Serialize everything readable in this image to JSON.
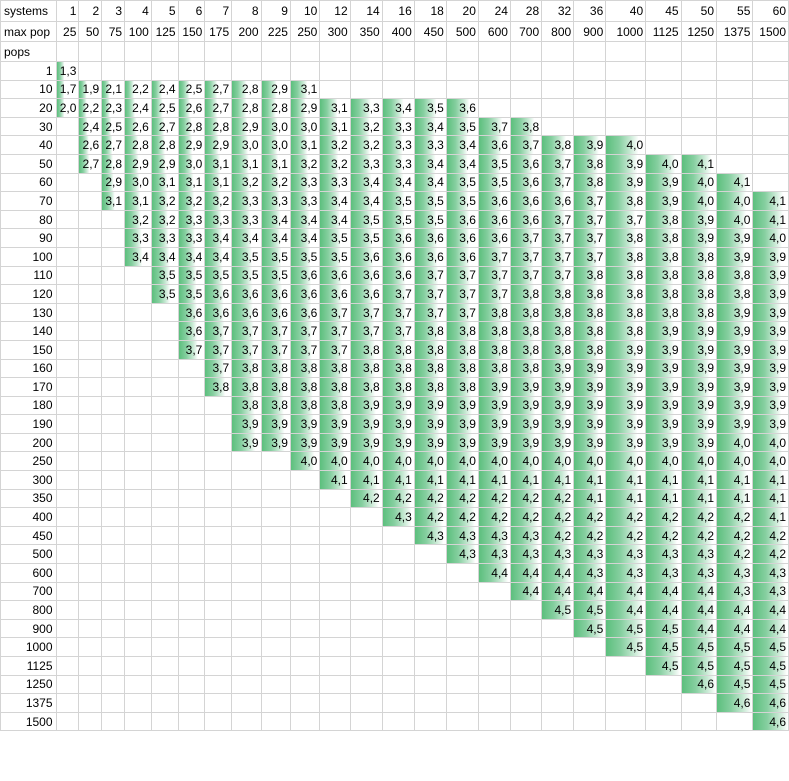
{
  "labels": {
    "systems": "systems",
    "max_pop": "max pop",
    "pops": "pops"
  },
  "columns": [
    {
      "systems": "1",
      "max_pop": "25"
    },
    {
      "systems": "2",
      "max_pop": "50"
    },
    {
      "systems": "3",
      "max_pop": "75"
    },
    {
      "systems": "4",
      "max_pop": "100"
    },
    {
      "systems": "5",
      "max_pop": "125"
    },
    {
      "systems": "6",
      "max_pop": "150"
    },
    {
      "systems": "7",
      "max_pop": "175"
    },
    {
      "systems": "8",
      "max_pop": "200"
    },
    {
      "systems": "9",
      "max_pop": "225"
    },
    {
      "systems": "10",
      "max_pop": "250"
    },
    {
      "systems": "12",
      "max_pop": "300"
    },
    {
      "systems": "14",
      "max_pop": "350"
    },
    {
      "systems": "16",
      "max_pop": "400"
    },
    {
      "systems": "18",
      "max_pop": "450"
    },
    {
      "systems": "20",
      "max_pop": "500"
    },
    {
      "systems": "24",
      "max_pop": "600"
    },
    {
      "systems": "28",
      "max_pop": "700"
    },
    {
      "systems": "32",
      "max_pop": "800"
    },
    {
      "systems": "36",
      "max_pop": "900"
    },
    {
      "systems": "40",
      "max_pop": "1000"
    },
    {
      "systems": "45",
      "max_pop": "1125"
    },
    {
      "systems": "50",
      "max_pop": "1250"
    },
    {
      "systems": "55",
      "max_pop": "1375"
    },
    {
      "systems": "60",
      "max_pop": "1500"
    }
  ],
  "rows": [
    {
      "pops": "1",
      "values": [
        "1,3",
        "",
        "",
        "",
        "",
        "",
        "",
        "",
        "",
        "",
        "",
        "",
        "",
        "",
        "",
        "",
        "",
        "",
        "",
        "",
        "",
        "",
        "",
        ""
      ]
    },
    {
      "pops": "10",
      "values": [
        "1,7",
        "1,9",
        "2,1",
        "2,2",
        "2,4",
        "2,5",
        "2,7",
        "2,8",
        "2,9",
        "3,1",
        "",
        "",
        "",
        "",
        "",
        "",
        "",
        "",
        "",
        "",
        "",
        "",
        "",
        ""
      ]
    },
    {
      "pops": "20",
      "values": [
        "2,0",
        "2,2",
        "2,3",
        "2,4",
        "2,5",
        "2,6",
        "2,7",
        "2,8",
        "2,8",
        "2,9",
        "3,1",
        "3,3",
        "3,4",
        "3,5",
        "3,6",
        "",
        "",
        "",
        "",
        "",
        "",
        "",
        "",
        ""
      ]
    },
    {
      "pops": "30",
      "values": [
        "",
        "2,4",
        "2,5",
        "2,6",
        "2,7",
        "2,8",
        "2,8",
        "2,9",
        "3,0",
        "3,0",
        "3,1",
        "3,2",
        "3,3",
        "3,4",
        "3,5",
        "3,7",
        "3,8",
        "",
        "",
        "",
        "",
        "",
        "",
        ""
      ]
    },
    {
      "pops": "40",
      "values": [
        "",
        "2,6",
        "2,7",
        "2,8",
        "2,8",
        "2,9",
        "2,9",
        "3,0",
        "3,0",
        "3,1",
        "3,2",
        "3,2",
        "3,3",
        "3,3",
        "3,4",
        "3,6",
        "3,7",
        "3,8",
        "3,9",
        "4,0",
        "",
        "",
        "",
        ""
      ]
    },
    {
      "pops": "50",
      "values": [
        "",
        "2,7",
        "2,8",
        "2,9",
        "2,9",
        "3,0",
        "3,1",
        "3,1",
        "3,1",
        "3,2",
        "3,2",
        "3,3",
        "3,3",
        "3,4",
        "3,4",
        "3,5",
        "3,6",
        "3,7",
        "3,8",
        "3,9",
        "4,0",
        "4,1",
        "",
        ""
      ]
    },
    {
      "pops": "60",
      "values": [
        "",
        "",
        "2,9",
        "3,0",
        "3,1",
        "3,1",
        "3,1",
        "3,2",
        "3,2",
        "3,3",
        "3,3",
        "3,4",
        "3,4",
        "3,4",
        "3,5",
        "3,5",
        "3,6",
        "3,7",
        "3,8",
        "3,9",
        "3,9",
        "4,0",
        "4,1",
        ""
      ]
    },
    {
      "pops": "70",
      "values": [
        "",
        "",
        "3,1",
        "3,1",
        "3,2",
        "3,2",
        "3,2",
        "3,3",
        "3,3",
        "3,3",
        "3,4",
        "3,4",
        "3,5",
        "3,5",
        "3,5",
        "3,6",
        "3,6",
        "3,6",
        "3,7",
        "3,8",
        "3,9",
        "4,0",
        "4,0",
        "4,1"
      ]
    },
    {
      "pops": "80",
      "values": [
        "",
        "",
        "",
        "3,2",
        "3,2",
        "3,3",
        "3,3",
        "3,3",
        "3,4",
        "3,4",
        "3,4",
        "3,5",
        "3,5",
        "3,5",
        "3,6",
        "3,6",
        "3,6",
        "3,7",
        "3,7",
        "3,7",
        "3,8",
        "3,9",
        "4,0",
        "4,1"
      ]
    },
    {
      "pops": "90",
      "values": [
        "",
        "",
        "",
        "3,3",
        "3,3",
        "3,3",
        "3,4",
        "3,4",
        "3,4",
        "3,4",
        "3,5",
        "3,5",
        "3,6",
        "3,6",
        "3,6",
        "3,6",
        "3,7",
        "3,7",
        "3,7",
        "3,8",
        "3,8",
        "3,9",
        "3,9",
        "4,0"
      ]
    },
    {
      "pops": "100",
      "values": [
        "",
        "",
        "",
        "3,4",
        "3,4",
        "3,4",
        "3,4",
        "3,5",
        "3,5",
        "3,5",
        "3,5",
        "3,6",
        "3,6",
        "3,6",
        "3,6",
        "3,7",
        "3,7",
        "3,7",
        "3,7",
        "3,8",
        "3,8",
        "3,8",
        "3,9",
        "3,9"
      ]
    },
    {
      "pops": "110",
      "values": [
        "",
        "",
        "",
        "",
        "3,5",
        "3,5",
        "3,5",
        "3,5",
        "3,5",
        "3,6",
        "3,6",
        "3,6",
        "3,6",
        "3,7",
        "3,7",
        "3,7",
        "3,7",
        "3,7",
        "3,8",
        "3,8",
        "3,8",
        "3,8",
        "3,8",
        "3,9"
      ]
    },
    {
      "pops": "120",
      "values": [
        "",
        "",
        "",
        "",
        "3,5",
        "3,5",
        "3,6",
        "3,6",
        "3,6",
        "3,6",
        "3,6",
        "3,6",
        "3,7",
        "3,7",
        "3,7",
        "3,7",
        "3,8",
        "3,8",
        "3,8",
        "3,8",
        "3,8",
        "3,8",
        "3,8",
        "3,9"
      ]
    },
    {
      "pops": "130",
      "values": [
        "",
        "",
        "",
        "",
        "",
        "3,6",
        "3,6",
        "3,6",
        "3,6",
        "3,6",
        "3,7",
        "3,7",
        "3,7",
        "3,7",
        "3,7",
        "3,8",
        "3,8",
        "3,8",
        "3,8",
        "3,8",
        "3,8",
        "3,8",
        "3,9",
        "3,9"
      ]
    },
    {
      "pops": "140",
      "values": [
        "",
        "",
        "",
        "",
        "",
        "3,6",
        "3,7",
        "3,7",
        "3,7",
        "3,7",
        "3,7",
        "3,7",
        "3,7",
        "3,8",
        "3,8",
        "3,8",
        "3,8",
        "3,8",
        "3,8",
        "3,8",
        "3,9",
        "3,9",
        "3,9",
        "3,9"
      ]
    },
    {
      "pops": "150",
      "values": [
        "",
        "",
        "",
        "",
        "",
        "3,7",
        "3,7",
        "3,7",
        "3,7",
        "3,7",
        "3,7",
        "3,8",
        "3,8",
        "3,8",
        "3,8",
        "3,8",
        "3,8",
        "3,8",
        "3,8",
        "3,9",
        "3,9",
        "3,9",
        "3,9",
        "3,9"
      ]
    },
    {
      "pops": "160",
      "values": [
        "",
        "",
        "",
        "",
        "",
        "",
        "3,7",
        "3,8",
        "3,8",
        "3,8",
        "3,8",
        "3,8",
        "3,8",
        "3,8",
        "3,8",
        "3,8",
        "3,8",
        "3,9",
        "3,9",
        "3,9",
        "3,9",
        "3,9",
        "3,9",
        "3,9"
      ]
    },
    {
      "pops": "170",
      "values": [
        "",
        "",
        "",
        "",
        "",
        "",
        "3,8",
        "3,8",
        "3,8",
        "3,8",
        "3,8",
        "3,8",
        "3,8",
        "3,8",
        "3,8",
        "3,9",
        "3,9",
        "3,9",
        "3,9",
        "3,9",
        "3,9",
        "3,9",
        "3,9",
        "3,9"
      ]
    },
    {
      "pops": "180",
      "values": [
        "",
        "",
        "",
        "",
        "",
        "",
        "",
        "3,8",
        "3,8",
        "3,8",
        "3,8",
        "3,9",
        "3,9",
        "3,9",
        "3,9",
        "3,9",
        "3,9",
        "3,9",
        "3,9",
        "3,9",
        "3,9",
        "3,9",
        "3,9",
        "3,9"
      ]
    },
    {
      "pops": "190",
      "values": [
        "",
        "",
        "",
        "",
        "",
        "",
        "",
        "3,9",
        "3,9",
        "3,9",
        "3,9",
        "3,9",
        "3,9",
        "3,9",
        "3,9",
        "3,9",
        "3,9",
        "3,9",
        "3,9",
        "3,9",
        "3,9",
        "3,9",
        "3,9",
        "3,9"
      ]
    },
    {
      "pops": "200",
      "values": [
        "",
        "",
        "",
        "",
        "",
        "",
        "",
        "3,9",
        "3,9",
        "3,9",
        "3,9",
        "3,9",
        "3,9",
        "3,9",
        "3,9",
        "3,9",
        "3,9",
        "3,9",
        "3,9",
        "3,9",
        "3,9",
        "3,9",
        "4,0",
        "4,0"
      ]
    },
    {
      "pops": "250",
      "values": [
        "",
        "",
        "",
        "",
        "",
        "",
        "",
        "",
        "",
        "4,0",
        "4,0",
        "4,0",
        "4,0",
        "4,0",
        "4,0",
        "4,0",
        "4,0",
        "4,0",
        "4,0",
        "4,0",
        "4,0",
        "4,0",
        "4,0",
        "4,0"
      ]
    },
    {
      "pops": "300",
      "values": [
        "",
        "",
        "",
        "",
        "",
        "",
        "",
        "",
        "",
        "",
        "4,1",
        "4,1",
        "4,1",
        "4,1",
        "4,1",
        "4,1",
        "4,1",
        "4,1",
        "4,1",
        "4,1",
        "4,1",
        "4,1",
        "4,1",
        "4,1"
      ]
    },
    {
      "pops": "350",
      "values": [
        "",
        "",
        "",
        "",
        "",
        "",
        "",
        "",
        "",
        "",
        "",
        "4,2",
        "4,2",
        "4,2",
        "4,2",
        "4,2",
        "4,2",
        "4,2",
        "4,1",
        "4,1",
        "4,1",
        "4,1",
        "4,1",
        "4,1"
      ]
    },
    {
      "pops": "400",
      "values": [
        "",
        "",
        "",
        "",
        "",
        "",
        "",
        "",
        "",
        "",
        "",
        "",
        "4,3",
        "4,2",
        "4,2",
        "4,2",
        "4,2",
        "4,2",
        "4,2",
        "4,2",
        "4,2",
        "4,2",
        "4,2",
        "4,1"
      ]
    },
    {
      "pops": "450",
      "values": [
        "",
        "",
        "",
        "",
        "",
        "",
        "",
        "",
        "",
        "",
        "",
        "",
        "",
        "4,3",
        "4,3",
        "4,3",
        "4,3",
        "4,2",
        "4,2",
        "4,2",
        "4,2",
        "4,2",
        "4,2",
        "4,2"
      ]
    },
    {
      "pops": "500",
      "values": [
        "",
        "",
        "",
        "",
        "",
        "",
        "",
        "",
        "",
        "",
        "",
        "",
        "",
        "",
        "4,3",
        "4,3",
        "4,3",
        "4,3",
        "4,3",
        "4,3",
        "4,3",
        "4,3",
        "4,2",
        "4,2"
      ]
    },
    {
      "pops": "600",
      "values": [
        "",
        "",
        "",
        "",
        "",
        "",
        "",
        "",
        "",
        "",
        "",
        "",
        "",
        "",
        "",
        "4,4",
        "4,4",
        "4,4",
        "4,3",
        "4,3",
        "4,3",
        "4,3",
        "4,3",
        "4,3"
      ]
    },
    {
      "pops": "700",
      "values": [
        "",
        "",
        "",
        "",
        "",
        "",
        "",
        "",
        "",
        "",
        "",
        "",
        "",
        "",
        "",
        "",
        "4,4",
        "4,4",
        "4,4",
        "4,4",
        "4,4",
        "4,4",
        "4,3",
        "4,3"
      ]
    },
    {
      "pops": "800",
      "values": [
        "",
        "",
        "",
        "",
        "",
        "",
        "",
        "",
        "",
        "",
        "",
        "",
        "",
        "",
        "",
        "",
        "",
        "4,5",
        "4,5",
        "4,4",
        "4,4",
        "4,4",
        "4,4",
        "4,4"
      ]
    },
    {
      "pops": "900",
      "values": [
        "",
        "",
        "",
        "",
        "",
        "",
        "",
        "",
        "",
        "",
        "",
        "",
        "",
        "",
        "",
        "",
        "",
        "",
        "4,5",
        "4,5",
        "4,5",
        "4,4",
        "4,4",
        "4,4"
      ]
    },
    {
      "pops": "1000",
      "values": [
        "",
        "",
        "",
        "",
        "",
        "",
        "",
        "",
        "",
        "",
        "",
        "",
        "",
        "",
        "",
        "",
        "",
        "",
        "",
        "4,5",
        "4,5",
        "4,5",
        "4,5",
        "4,5"
      ]
    },
    {
      "pops": "1125",
      "values": [
        "",
        "",
        "",
        "",
        "",
        "",
        "",
        "",
        "",
        "",
        "",
        "",
        "",
        "",
        "",
        "",
        "",
        "",
        "",
        "",
        "4,5",
        "4,5",
        "4,5",
        "4,5"
      ]
    },
    {
      "pops": "1250",
      "values": [
        "",
        "",
        "",
        "",
        "",
        "",
        "",
        "",
        "",
        "",
        "",
        "",
        "",
        "",
        "",
        "",
        "",
        "",
        "",
        "",
        "",
        "4,6",
        "4,5",
        "4,5"
      ]
    },
    {
      "pops": "1375",
      "values": [
        "",
        "",
        "",
        "",
        "",
        "",
        "",
        "",
        "",
        "",
        "",
        "",
        "",
        "",
        "",
        "",
        "",
        "",
        "",
        "",
        "",
        "",
        "4,6",
        "4,6"
      ]
    },
    {
      "pops": "1500",
      "values": [
        "",
        "",
        "",
        "",
        "",
        "",
        "",
        "",
        "",
        "",
        "",
        "",
        "",
        "",
        "",
        "",
        "",
        "",
        "",
        "",
        "",
        "",
        "",
        "4,6"
      ]
    }
  ],
  "colors": {
    "bar": "#5cbf7d",
    "grid": "#d4d4d4"
  }
}
